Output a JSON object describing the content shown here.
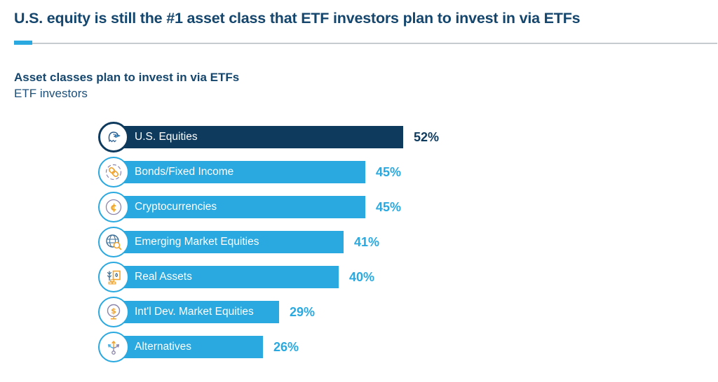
{
  "header": {
    "title": "U.S. equity is still the #1 asset class that ETF investors plan to invest in via ETFs"
  },
  "chart_header": {
    "title": "Asset classes plan to invest in via ETFs",
    "subtitle": "ETF investors"
  },
  "colors": {
    "navy": "#0e3a5e",
    "light_blue": "#29a9e0",
    "accent": "#29a9e0",
    "icon_orange": "#f0a32f",
    "icon_purple": "#8b84ab",
    "icon_steel_blue": "#3d6e96",
    "divider_gray": "#c6cbcf"
  },
  "chart_data": {
    "type": "bar",
    "orientation": "horizontal",
    "title": "Asset classes plan to invest in via ETFs",
    "subtitle": "ETF investors",
    "unit": "percent",
    "xlim": [
      0,
      55
    ],
    "grid": false,
    "legend": "none",
    "categories": [
      "U.S. Equities",
      "Bonds/Fixed Income",
      "Cryptocurrencies",
      "Emerging Market Equities",
      "Real Assets",
      "Int'l Dev. Market Equities",
      "Alternatives"
    ],
    "values": [
      52,
      45,
      45,
      41,
      40,
      29,
      26
    ],
    "bars": [
      {
        "label": "U.S. Equities",
        "value": 52,
        "display": "52%",
        "icon": "eagle-icon",
        "emphasis": true
      },
      {
        "label": "Bonds/Fixed Income",
        "value": 45,
        "display": "45%",
        "icon": "chain-link-icon",
        "emphasis": false
      },
      {
        "label": "Cryptocurrencies",
        "value": 45,
        "display": "45%",
        "icon": "cryptocurrency-cent-icon",
        "emphasis": false
      },
      {
        "label": "Emerging Market Equities",
        "value": 41,
        "display": "41%",
        "icon": "globe-magnifier-icon",
        "emphasis": false
      },
      {
        "label": "Real Assets",
        "value": 40,
        "display": "40%",
        "icon": "wheat-building-gold-icon",
        "emphasis": false
      },
      {
        "label": "Int'l Dev. Market Equities",
        "value": 29,
        "display": "29%",
        "icon": "desk-globe-dollar-icon",
        "emphasis": false
      },
      {
        "label": "Alternatives",
        "value": 26,
        "display": "26%",
        "icon": "branching-arrows-icon",
        "emphasis": false
      }
    ]
  }
}
